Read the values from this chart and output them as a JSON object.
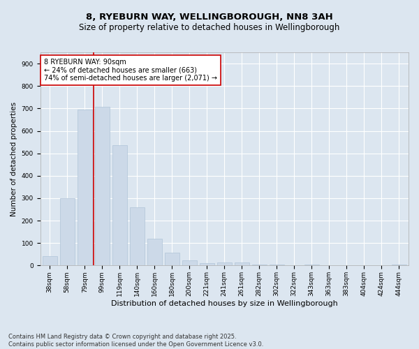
{
  "title": "8, RYEBURN WAY, WELLINGBOROUGH, NN8 3AH",
  "subtitle": "Size of property relative to detached houses in Wellingborough",
  "xlabel": "Distribution of detached houses by size in Wellingborough",
  "ylabel": "Number of detached properties",
  "categories": [
    "38sqm",
    "58sqm",
    "79sqm",
    "99sqm",
    "119sqm",
    "140sqm",
    "160sqm",
    "180sqm",
    "200sqm",
    "221sqm",
    "241sqm",
    "261sqm",
    "282sqm",
    "302sqm",
    "322sqm",
    "343sqm",
    "363sqm",
    "383sqm",
    "404sqm",
    "424sqm",
    "444sqm"
  ],
  "values": [
    42,
    300,
    695,
    707,
    535,
    260,
    120,
    58,
    22,
    12,
    15,
    15,
    5,
    4,
    0,
    6,
    1,
    1,
    0,
    0,
    5
  ],
  "bar_color": "#ccd9e8",
  "bar_edge_color": "#b0c4d8",
  "vline_color": "#cc0000",
  "vline_x_index": 2.5,
  "annotation_text": "8 RYEBURN WAY: 90sqm\n← 24% of detached houses are smaller (663)\n74% of semi-detached houses are larger (2,071) →",
  "annotation_box_facecolor": "#ffffff",
  "annotation_box_edgecolor": "#cc0000",
  "ylim": [
    0,
    950
  ],
  "yticks": [
    0,
    100,
    200,
    300,
    400,
    500,
    600,
    700,
    800,
    900
  ],
  "background_color": "#dce6f0",
  "plot_background": "#dce6f0",
  "grid_color": "#ffffff",
  "footer": "Contains HM Land Registry data © Crown copyright and database right 2025.\nContains public sector information licensed under the Open Government Licence v3.0.",
  "title_fontsize": 9.5,
  "subtitle_fontsize": 8.5,
  "xlabel_fontsize": 8,
  "ylabel_fontsize": 7.5,
  "tick_fontsize": 6.5,
  "annotation_fontsize": 7,
  "footer_fontsize": 6
}
